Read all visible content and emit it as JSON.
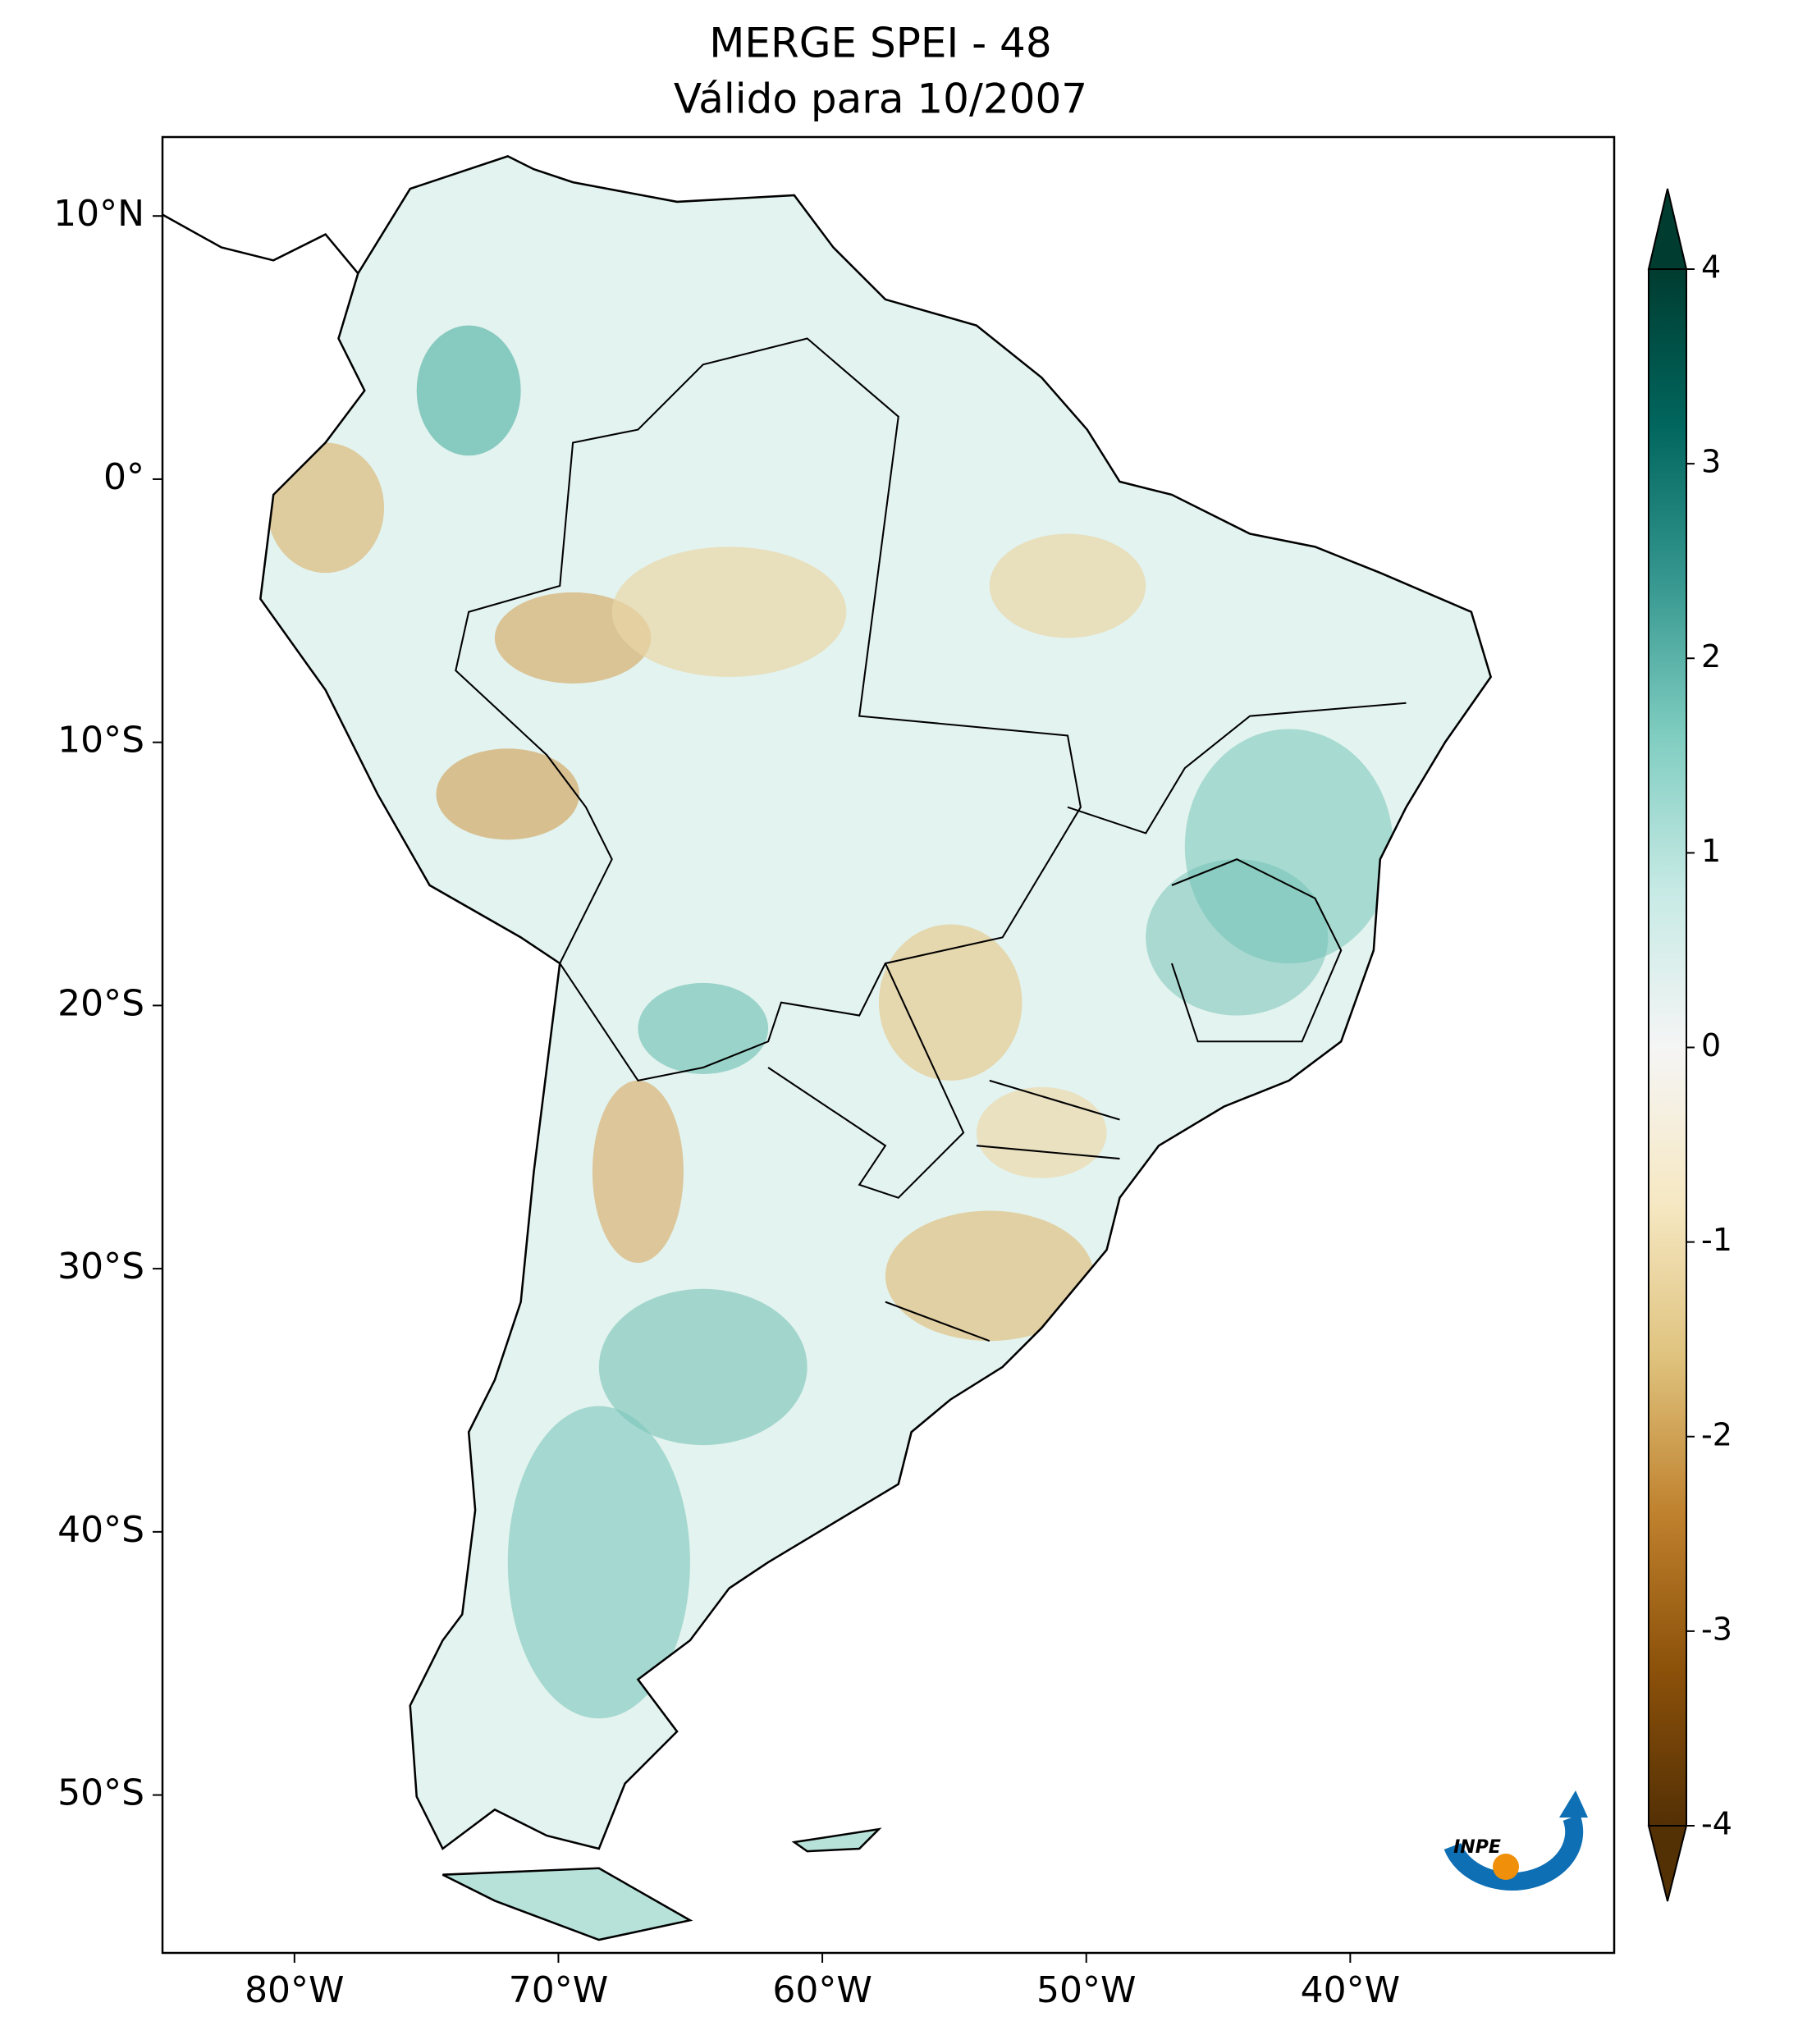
{
  "chart_data": {
    "type": "map",
    "title": "MERGE   SPEI - 48",
    "subtitle": "Válido para 10/2007",
    "xlim": [
      -85,
      -30
    ],
    "ylim": [
      -56,
      13
    ],
    "xticks": [
      {
        "value": -80,
        "label": "80°W"
      },
      {
        "value": -70,
        "label": "70°W"
      },
      {
        "value": -60,
        "label": "60°W"
      },
      {
        "value": -50,
        "label": "50°W"
      },
      {
        "value": -40,
        "label": "40°W"
      }
    ],
    "yticks": [
      {
        "value": 10,
        "label": "10°N"
      },
      {
        "value": 0,
        "label": "0°"
      },
      {
        "value": -10,
        "label": "10°S"
      },
      {
        "value": -20,
        "label": "20°S"
      },
      {
        "value": -30,
        "label": "30°S"
      },
      {
        "value": -40,
        "label": "40°S"
      },
      {
        "value": -50,
        "label": "50°S"
      }
    ],
    "colorbar": {
      "lim": [
        -4,
        4
      ],
      "ticks": [
        -4,
        -3,
        -2,
        -1,
        0,
        1,
        2,
        3,
        4
      ],
      "colormap": [
        "#543005",
        "#8c510a",
        "#bf812d",
        "#dfc27d",
        "#f6e8c3",
        "#f5f5f5",
        "#c7eae5",
        "#80cdc1",
        "#35978f",
        "#01665e",
        "#003c30"
      ]
    },
    "logo": "INPE"
  }
}
